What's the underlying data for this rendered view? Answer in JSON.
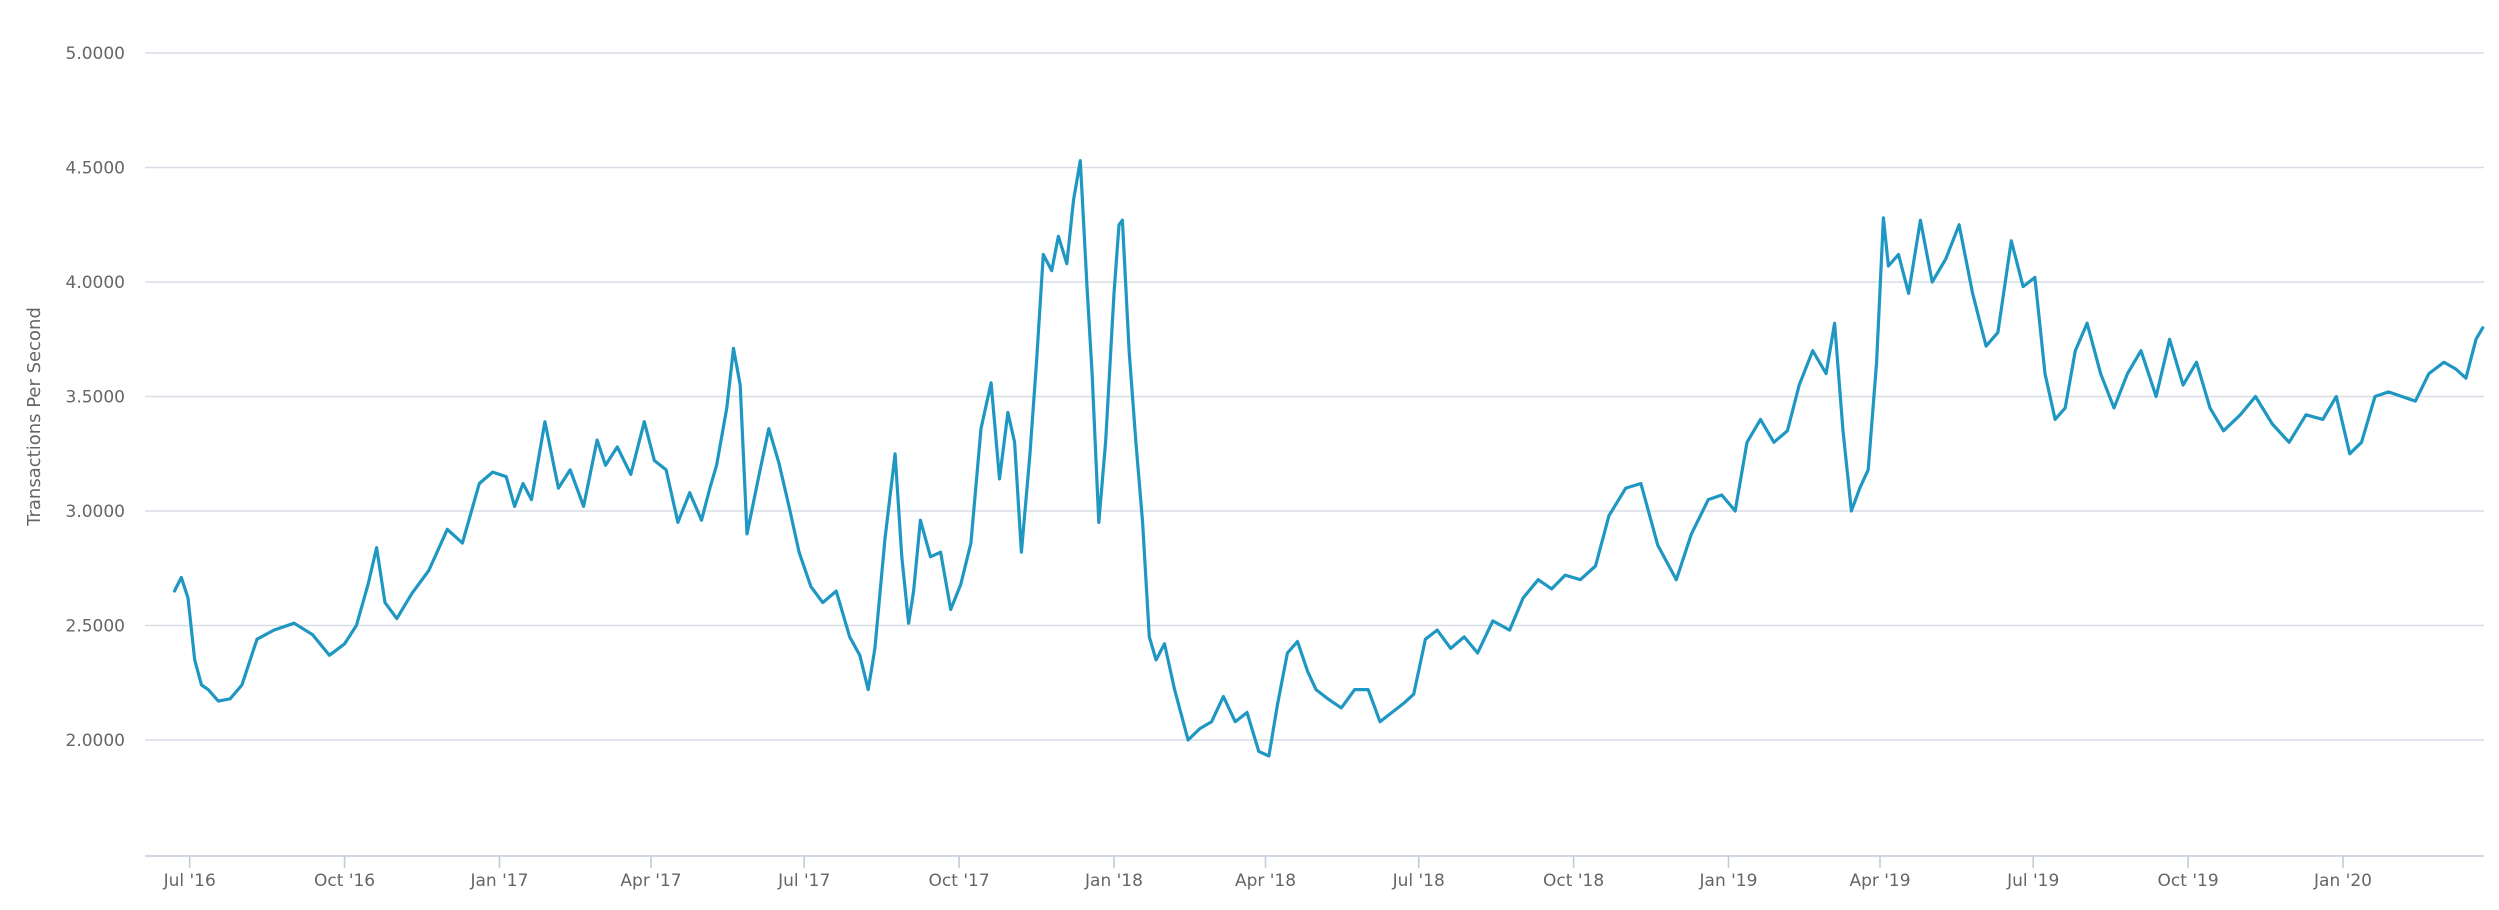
{
  "chart_data": {
    "type": "line",
    "title": "",
    "xlabel": "",
    "ylabel": "Transactions Per Second",
    "ylim": [
      1.5,
      5.0
    ],
    "xlim": [
      "2016-06-08",
      "2020-04-01"
    ],
    "grid": true,
    "legend": "none",
    "line_color": "#1f97c3",
    "y_ticks": [
      {
        "value": 2.0,
        "label": "2.0000"
      },
      {
        "value": 2.5,
        "label": "2.5000"
      },
      {
        "value": 3.0,
        "label": "3.0000"
      },
      {
        "value": 3.5,
        "label": "3.5000"
      },
      {
        "value": 4.0,
        "label": "4.0000"
      },
      {
        "value": 4.5,
        "label": "4.5000"
      },
      {
        "value": 5.0,
        "label": "5.0000"
      }
    ],
    "x_ticks": [
      {
        "date": "2016-07-01",
        "label": "Jul '16"
      },
      {
        "date": "2016-10-01",
        "label": "Oct '16"
      },
      {
        "date": "2017-01-01",
        "label": "Jan '17"
      },
      {
        "date": "2017-04-01",
        "label": "Apr '17"
      },
      {
        "date": "2017-07-01",
        "label": "Jul '17"
      },
      {
        "date": "2017-10-01",
        "label": "Oct '17"
      },
      {
        "date": "2018-01-01",
        "label": "Jan '18"
      },
      {
        "date": "2018-04-01",
        "label": "Apr '18"
      },
      {
        "date": "2018-07-01",
        "label": "Jul '18"
      },
      {
        "date": "2018-10-01",
        "label": "Oct '18"
      },
      {
        "date": "2019-01-01",
        "label": "Jan '19"
      },
      {
        "date": "2019-04-01",
        "label": "Apr '19"
      },
      {
        "date": "2019-07-01",
        "label": "Jul '19"
      },
      {
        "date": "2019-10-01",
        "label": "Oct '19"
      },
      {
        "date": "2020-01-01",
        "label": "Jan '20"
      }
    ],
    "series": [
      {
        "x": [
          "2016-06-22",
          "2016-06-26",
          "2016-06-30",
          "2016-07-04",
          "2016-07-08",
          "2016-07-12",
          "2016-07-18",
          "2016-07-25",
          "2016-08-01",
          "2016-08-10",
          "2016-08-20",
          "2016-09-01",
          "2016-09-12",
          "2016-09-22",
          "2016-10-01",
          "2016-10-08",
          "2016-10-15",
          "2016-10-20",
          "2016-10-25",
          "2016-11-01",
          "2016-11-10",
          "2016-11-20",
          "2016-12-01",
          "2016-12-10",
          "2016-12-20",
          "2016-12-28",
          "2017-01-05",
          "2017-01-10",
          "2017-01-15",
          "2017-01-20",
          "2017-01-28",
          "2017-02-05",
          "2017-02-12",
          "2017-02-20",
          "2017-02-28",
          "2017-03-05",
          "2017-03-12",
          "2017-03-20",
          "2017-03-28",
          "2017-04-03",
          "2017-04-10",
          "2017-04-17",
          "2017-04-24",
          "2017-05-01",
          "2017-05-06",
          "2017-05-10",
          "2017-05-16",
          "2017-05-20",
          "2017-05-24",
          "2017-05-28",
          "2017-06-04",
          "2017-06-10",
          "2017-06-16",
          "2017-06-22",
          "2017-06-28",
          "2017-07-05",
          "2017-07-12",
          "2017-07-20",
          "2017-07-28",
          "2017-08-03",
          "2017-08-08",
          "2017-08-12",
          "2017-08-18",
          "2017-08-24",
          "2017-08-28",
          "2017-09-01",
          "2017-09-04",
          "2017-09-08",
          "2017-09-14",
          "2017-09-20",
          "2017-09-26",
          "2017-10-02",
          "2017-10-08",
          "2017-10-14",
          "2017-10-20",
          "2017-10-25",
          "2017-10-30",
          "2017-11-03",
          "2017-11-07",
          "2017-11-12",
          "2017-11-16",
          "2017-11-20",
          "2017-11-25",
          "2017-11-29",
          "2017-12-04",
          "2017-12-08",
          "2017-12-12",
          "2017-12-16",
          "2017-12-19",
          "2017-12-23",
          "2017-12-27",
          "2018-01-01",
          "2018-01-04",
          "2018-01-06",
          "2018-01-10",
          "2018-01-14",
          "2018-01-18",
          "2018-01-22",
          "2018-01-26",
          "2018-01-31",
          "2018-02-06",
          "2018-02-14",
          "2018-02-21",
          "2018-02-28",
          "2018-03-07",
          "2018-03-14",
          "2018-03-21",
          "2018-03-28",
          "2018-04-03",
          "2018-04-08",
          "2018-04-14",
          "2018-04-20",
          "2018-04-26",
          "2018-05-01",
          "2018-05-08",
          "2018-05-16",
          "2018-05-24",
          "2018-06-01",
          "2018-06-08",
          "2018-06-15",
          "2018-06-22",
          "2018-06-28",
          "2018-07-05",
          "2018-07-12",
          "2018-07-20",
          "2018-07-28",
          "2018-08-05",
          "2018-08-14",
          "2018-08-24",
          "2018-09-01",
          "2018-09-10",
          "2018-09-18",
          "2018-09-26",
          "2018-10-05",
          "2018-10-14",
          "2018-10-22",
          "2018-11-01",
          "2018-11-10",
          "2018-11-20",
          "2018-12-01",
          "2018-12-10",
          "2018-12-20",
          "2018-12-28",
          "2019-01-05",
          "2019-01-12",
          "2019-01-20",
          "2019-01-28",
          "2019-02-05",
          "2019-02-12",
          "2019-02-20",
          "2019-02-28",
          "2019-03-05",
          "2019-03-10",
          "2019-03-15",
          "2019-03-20",
          "2019-03-25",
          "2019-03-30",
          "2019-04-03",
          "2019-04-06",
          "2019-04-12",
          "2019-04-18",
          "2019-04-25",
          "2019-05-02",
          "2019-05-10",
          "2019-05-18",
          "2019-05-26",
          "2019-06-03",
          "2019-06-10",
          "2019-06-18",
          "2019-06-25",
          "2019-07-02",
          "2019-07-08",
          "2019-07-14",
          "2019-07-20",
          "2019-07-26",
          "2019-08-02",
          "2019-08-10",
          "2019-08-18",
          "2019-08-26",
          "2019-09-03",
          "2019-09-12",
          "2019-09-20",
          "2019-09-28",
          "2019-10-06",
          "2019-10-14",
          "2019-10-22",
          "2019-11-01",
          "2019-11-10",
          "2019-11-20",
          "2019-11-30",
          "2019-12-10",
          "2019-12-20",
          "2019-12-28",
          "2020-01-05",
          "2020-01-12",
          "2020-01-20",
          "2020-01-28",
          "2020-02-05",
          "2020-02-13",
          "2020-02-21",
          "2020-03-01",
          "2020-03-08",
          "2020-03-14",
          "2020-03-20",
          "2020-03-24"
        ],
        "y": [
          2.65,
          2.71,
          2.62,
          2.35,
          2.24,
          2.22,
          2.17,
          2.18,
          2.24,
          2.44,
          2.48,
          2.51,
          2.46,
          2.37,
          2.42,
          2.5,
          2.68,
          2.84,
          2.6,
          2.53,
          2.64,
          2.74,
          2.92,
          2.86,
          3.12,
          3.17,
          3.15,
          3.02,
          3.12,
          3.05,
          3.39,
          3.1,
          3.18,
          3.02,
          3.31,
          3.2,
          3.28,
          3.16,
          3.39,
          3.22,
          3.18,
          2.95,
          3.08,
          2.96,
          3.1,
          3.2,
          3.45,
          3.71,
          3.55,
          2.9,
          3.15,
          3.36,
          3.21,
          3.02,
          2.82,
          2.67,
          2.6,
          2.65,
          2.45,
          2.37,
          2.22,
          2.4,
          2.88,
          3.25,
          2.8,
          2.51,
          2.65,
          2.96,
          2.8,
          2.82,
          2.57,
          2.68,
          2.86,
          3.36,
          3.56,
          3.14,
          3.43,
          3.3,
          2.82,
          3.24,
          3.65,
          4.12,
          4.05,
          4.2,
          4.08,
          4.36,
          4.53,
          3.98,
          3.6,
          2.95,
          3.3,
          3.95,
          4.25,
          4.27,
          3.7,
          3.3,
          2.95,
          2.45,
          2.35,
          2.42,
          2.22,
          2.0,
          2.05,
          2.08,
          2.19,
          2.08,
          2.12,
          1.95,
          1.93,
          2.15,
          2.38,
          2.43,
          2.3,
          2.22,
          2.18,
          2.14,
          2.22,
          2.22,
          2.08,
          2.12,
          2.16,
          2.2,
          2.44,
          2.48,
          2.4,
          2.45,
          2.38,
          2.52,
          2.48,
          2.62,
          2.7,
          2.66,
          2.72,
          2.7,
          2.76,
          2.98,
          3.1,
          3.12,
          2.85,
          2.7,
          2.9,
          3.05,
          3.07,
          3.0,
          3.3,
          3.4,
          3.3,
          3.35,
          3.55,
          3.7,
          3.6,
          3.82,
          3.35,
          3.0,
          3.1,
          3.18,
          3.65,
          4.28,
          4.07,
          4.12,
          3.95,
          4.27,
          4.0,
          4.1,
          4.25,
          3.95,
          3.72,
          3.78,
          4.18,
          3.98,
          4.02,
          3.6,
          3.4,
          3.45,
          3.7,
          3.82,
          3.6,
          3.45,
          3.6,
          3.7,
          3.5,
          3.75,
          3.55,
          3.65,
          3.45,
          3.35,
          3.42,
          3.5,
          3.38,
          3.3,
          3.42,
          3.4,
          3.5,
          3.25,
          3.3,
          3.5,
          3.52,
          3.5,
          3.48,
          3.6,
          3.65,
          3.62,
          3.58,
          3.75,
          3.8
        ]
      }
    ]
  }
}
